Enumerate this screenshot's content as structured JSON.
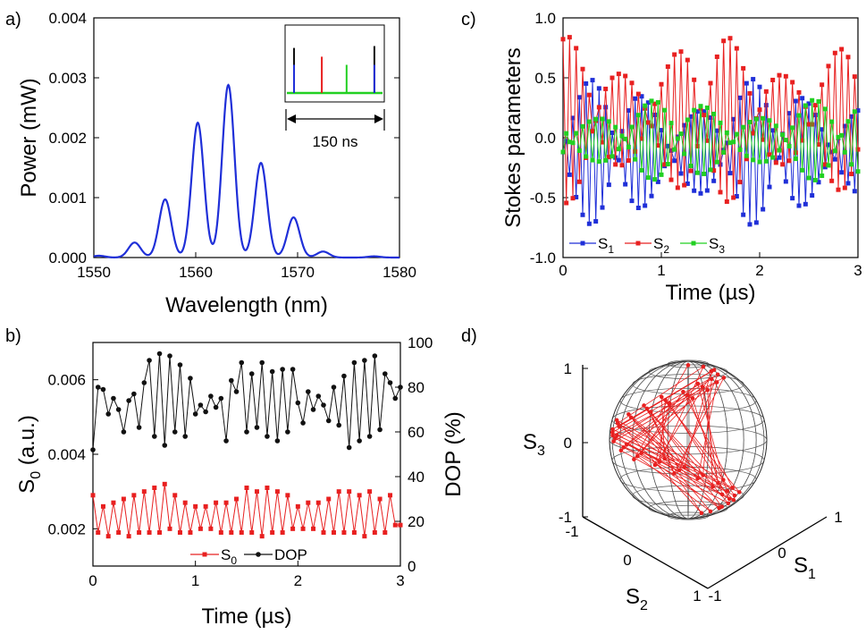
{
  "panels": [
    {
      "letter": "a)"
    },
    {
      "letter": "b)"
    },
    {
      "letter": "c)"
    },
    {
      "letter": "d)"
    }
  ],
  "colors": {
    "blue": "#1f2fd8",
    "red": "#e82020",
    "green": "#22d022",
    "black": "#111111",
    "sphere": "#555555"
  },
  "chart_data": [
    {
      "id": "a",
      "type": "line",
      "xlabel": "Wavelength (nm)",
      "ylabel": "Power (mW)",
      "xlim": [
        1550,
        1580
      ],
      "ylim": [
        0,
        0.004
      ],
      "xticks": [
        1550,
        1560,
        1570,
        1580
      ],
      "yticks": [
        0.0,
        0.001,
        0.002,
        0.003,
        0.004
      ],
      "ytick_labels": [
        "0.000",
        "0.001",
        "0.002",
        "0.003",
        "0.004"
      ],
      "series": [
        {
          "color": "blue",
          "peaks": [
            [
              1550.5,
              3e-05
            ],
            [
              1554,
              0.00025
            ],
            [
              1557,
              0.00097
            ],
            [
              1560.2,
              0.00225
            ],
            [
              1563.2,
              0.00288
            ],
            [
              1566.4,
              0.00158
            ],
            [
              1569.6,
              0.00067
            ],
            [
              1572.5,
              0.0001
            ],
            [
              1577.5,
              2e-05
            ]
          ],
          "width": 0.85
        }
      ],
      "inset": {
        "annotation": "150 ns",
        "pulses": [
          {
            "pos": 0.09,
            "color": "black",
            "height": 0.72
          },
          {
            "pos": 0.09,
            "color": "blue",
            "height": 0.45
          },
          {
            "pos": 0.37,
            "color": "red",
            "height": 0.58
          },
          {
            "pos": 0.62,
            "color": "green",
            "height": 0.45
          },
          {
            "pos": 0.9,
            "color": "black",
            "height": 0.75
          },
          {
            "pos": 0.9,
            "color": "blue",
            "height": 0.45
          }
        ]
      }
    },
    {
      "id": "b",
      "type": "line",
      "xlabel": "Time (µs)",
      "ylabel_left": "S",
      "ylabel_left_sub": "0",
      "ylabel_left_unit": " (a.u.)",
      "ylabel_right": "DOP (%)",
      "xlim": [
        0,
        3
      ],
      "ylim_left": [
        0.001,
        0.007
      ],
      "ylim_right": [
        0,
        100
      ],
      "xticks": [
        0,
        1,
        2,
        3
      ],
      "yticks_left": [
        0.002,
        0.004,
        0.006
      ],
      "ytick_left_labels": [
        "0.002",
        "0.004",
        "0.006"
      ],
      "yticks_right": [
        0,
        20,
        40,
        60,
        80,
        100
      ],
      "legend": [
        {
          "name": "S",
          "sub": "0",
          "color": "red"
        },
        {
          "name": "DOP",
          "sub": "",
          "color": "black"
        }
      ],
      "series": [
        {
          "name": "S0",
          "axis": "left",
          "color": "red",
          "x": [
            0.0,
            0.05,
            0.1,
            0.15,
            0.2,
            0.25,
            0.3,
            0.35,
            0.4,
            0.45,
            0.5,
            0.55,
            0.6,
            0.65,
            0.7,
            0.75,
            0.8,
            0.85,
            0.9,
            0.95,
            1.0,
            1.05,
            1.1,
            1.15,
            1.2,
            1.25,
            1.3,
            1.35,
            1.4,
            1.45,
            1.5,
            1.55,
            1.6,
            1.65,
            1.7,
            1.75,
            1.8,
            1.85,
            1.9,
            1.95,
            2.0,
            2.05,
            2.1,
            2.15,
            2.2,
            2.25,
            2.3,
            2.35,
            2.4,
            2.45,
            2.5,
            2.55,
            2.6,
            2.65,
            2.7,
            2.75,
            2.8,
            2.85,
            2.9,
            2.95,
            3.0
          ],
          "y": [
            0.0029,
            0.0019,
            0.0026,
            0.0018,
            0.0027,
            0.0019,
            0.0028,
            0.0018,
            0.0029,
            0.0019,
            0.003,
            0.0019,
            0.0031,
            0.0019,
            0.0032,
            0.002,
            0.0029,
            0.0019,
            0.0027,
            0.0019,
            0.0026,
            0.002,
            0.0026,
            0.002,
            0.0027,
            0.0019,
            0.0027,
            0.0019,
            0.0028,
            0.0019,
            0.0031,
            0.0019,
            0.003,
            0.0018,
            0.0031,
            0.0019,
            0.003,
            0.0019,
            0.0029,
            0.002,
            0.0026,
            0.002,
            0.0027,
            0.002,
            0.0027,
            0.0019,
            0.0028,
            0.0019,
            0.003,
            0.0019,
            0.003,
            0.0019,
            0.0029,
            0.0018,
            0.003,
            0.0019,
            0.0028,
            0.0019,
            0.0029,
            0.0021,
            0.0021
          ]
        },
        {
          "name": "DOP",
          "axis": "right",
          "color": "black",
          "x": [
            0.0,
            0.05,
            0.1,
            0.15,
            0.2,
            0.25,
            0.3,
            0.35,
            0.4,
            0.45,
            0.5,
            0.55,
            0.6,
            0.65,
            0.7,
            0.75,
            0.8,
            0.85,
            0.9,
            0.95,
            1.0,
            1.05,
            1.1,
            1.15,
            1.2,
            1.25,
            1.3,
            1.35,
            1.4,
            1.45,
            1.5,
            1.55,
            1.6,
            1.65,
            1.7,
            1.75,
            1.8,
            1.85,
            1.9,
            1.95,
            2.0,
            2.05,
            2.1,
            2.15,
            2.2,
            2.25,
            2.3,
            2.35,
            2.4,
            2.45,
            2.5,
            2.55,
            2.6,
            2.65,
            2.7,
            2.75,
            2.8,
            2.85,
            2.9,
            2.95,
            3.0
          ],
          "y": [
            52,
            80,
            79,
            68,
            75,
            70,
            60,
            74,
            77,
            62,
            82,
            92,
            58,
            95,
            54,
            94,
            60,
            90,
            58,
            84,
            68,
            72,
            69,
            76,
            71,
            75,
            56,
            83,
            78,
            91,
            60,
            86,
            62,
            91,
            58,
            87,
            56,
            88,
            60,
            88,
            73,
            64,
            78,
            70,
            76,
            72,
            65,
            80,
            63,
            85,
            53,
            91,
            56,
            92,
            58,
            94,
            61,
            86,
            82,
            75,
            80
          ]
        }
      ]
    },
    {
      "id": "c",
      "type": "line",
      "xlabel": "Time (µs)",
      "ylabel": "Stokes parameters",
      "xlim": [
        0,
        3
      ],
      "ylim": [
        -1.0,
        1.0
      ],
      "xticks": [
        0,
        1,
        2,
        3
      ],
      "yticks": [
        -1.0,
        -0.5,
        0.0,
        0.5,
        1.0
      ],
      "ytick_labels": [
        "-1.0",
        "-0.5",
        "0.0",
        "0.5",
        "1.0"
      ],
      "legend": [
        {
          "name": "S",
          "sub": "1",
          "color": "blue"
        },
        {
          "name": "S",
          "sub": "2",
          "color": "red"
        },
        {
          "name": "S",
          "sub": "3",
          "color": "green"
        }
      ],
      "series": [
        {
          "name": "S1",
          "color": "blue",
          "amp": 0.62,
          "offset": -0.12,
          "phase": 0.0
        },
        {
          "name": "S2",
          "color": "red",
          "amp": 0.72,
          "offset": 0.15,
          "phase": 1.9
        },
        {
          "name": "S3",
          "color": "green",
          "amp": 0.35,
          "offset": -0.02,
          "phase": 3.6
        }
      ]
    },
    {
      "id": "d",
      "type": "scatter",
      "xlabel": "S",
      "xlabel_sub": "1",
      "ylabel": "S",
      "ylabel_sub": "2",
      "zlabel": "S",
      "zlabel_sub": "3",
      "ticks": {
        "z": [
          "1",
          "0",
          "-1"
        ],
        "s2": [
          "-1",
          "0",
          "1"
        ],
        "s1": [
          "-1",
          "0",
          "1"
        ]
      }
    }
  ]
}
